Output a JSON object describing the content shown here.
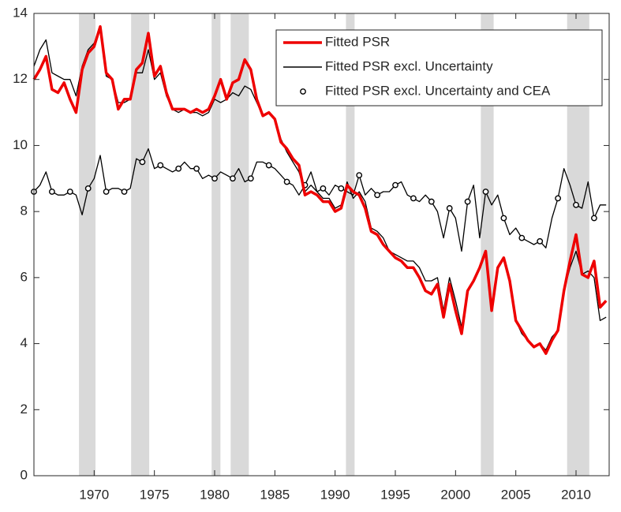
{
  "chart_data": {
    "type": "line",
    "x": [
      1965,
      1965.5,
      1966,
      1966.5,
      1967,
      1967.5,
      1968,
      1968.5,
      1969,
      1969.5,
      1970,
      1970.5,
      1971,
      1971.5,
      1972,
      1972.5,
      1973,
      1973.5,
      1974,
      1974.5,
      1975,
      1975.5,
      1976,
      1976.5,
      1977,
      1977.5,
      1978,
      1978.5,
      1979,
      1979.5,
      1980,
      1980.5,
      1981,
      1981.5,
      1982,
      1982.5,
      1983,
      1983.5,
      1984,
      1984.5,
      1985,
      1985.5,
      1986,
      1986.5,
      1987,
      1987.5,
      1988,
      1988.5,
      1989,
      1989.5,
      1990,
      1990.5,
      1991,
      1991.5,
      1992,
      1992.5,
      1993,
      1993.5,
      1994,
      1994.5,
      1995,
      1995.5,
      1996,
      1996.5,
      1997,
      1997.5,
      1998,
      1998.5,
      1999,
      1999.5,
      2000,
      2000.5,
      2001,
      2001.5,
      2002,
      2002.5,
      2003,
      2003.5,
      2004,
      2004.5,
      2005,
      2005.5,
      2006,
      2006.5,
      2007,
      2007.5,
      2008,
      2008.5,
      2009,
      2009.5,
      2010,
      2010.5,
      2011,
      2011.5,
      2012,
      2012.5
    ],
    "series": [
      {
        "name": "Fitted PSR",
        "color": "#ee0000",
        "values": [
          12.0,
          12.3,
          12.7,
          11.7,
          11.6,
          11.9,
          11.4,
          11.0,
          12.3,
          12.8,
          13.0,
          13.6,
          12.2,
          12.0,
          11.1,
          11.4,
          11.4,
          12.3,
          12.5,
          13.4,
          12.1,
          12.4,
          11.6,
          11.1,
          11.1,
          11.1,
          11.0,
          11.1,
          11.0,
          11.1,
          11.5,
          12.0,
          11.4,
          11.9,
          12.0,
          12.6,
          12.3,
          11.4,
          10.9,
          11.0,
          10.8,
          10.1,
          9.9,
          9.6,
          9.4,
          8.5,
          8.6,
          8.5,
          8.3,
          8.3,
          8.0,
          8.1,
          8.8,
          8.6,
          8.5,
          8.1,
          7.4,
          7.3,
          7.0,
          6.8,
          6.6,
          6.5,
          6.3,
          6.3,
          6.0,
          5.6,
          5.5,
          5.8,
          4.8,
          5.8,
          5.0,
          4.3,
          5.6,
          5.9,
          6.3,
          6.8,
          5.0,
          6.3,
          6.6,
          5.9,
          4.7,
          4.4,
          4.1,
          3.9,
          4.0,
          3.7,
          4.1,
          4.4,
          5.6,
          6.5,
          7.3,
          6.1,
          6.0,
          6.5,
          5.1,
          5.3
        ]
      },
      {
        "name": "Fitted PSR excl. Uncertainty",
        "color": "#000000",
        "values": [
          12.4,
          12.9,
          13.2,
          12.2,
          12.1,
          12.0,
          12.0,
          11.5,
          12.4,
          12.9,
          13.1,
          13.6,
          12.1,
          12.0,
          11.3,
          11.3,
          11.4,
          12.2,
          12.2,
          12.9,
          12.0,
          12.2,
          11.5,
          11.1,
          11.0,
          11.1,
          11.0,
          11.0,
          10.9,
          11.0,
          11.4,
          11.3,
          11.4,
          11.6,
          11.5,
          11.8,
          11.7,
          11.3,
          10.9,
          11.0,
          10.8,
          10.2,
          9.8,
          9.5,
          9.2,
          8.6,
          8.8,
          8.6,
          8.4,
          8.4,
          8.1,
          8.2,
          8.9,
          8.4,
          8.6,
          8.3,
          7.5,
          7.4,
          7.2,
          6.8,
          6.7,
          6.6,
          6.5,
          6.5,
          6.3,
          5.9,
          5.9,
          6.0,
          5.0,
          6.0,
          5.3,
          4.5,
          5.6,
          5.9,
          6.3,
          6.8,
          5.0,
          6.3,
          6.6,
          5.9,
          4.7,
          4.3,
          4.1,
          3.9,
          4.0,
          3.8,
          4.2,
          4.4,
          5.6,
          6.3,
          6.8,
          6.1,
          6.2,
          6.0,
          4.7,
          4.8
        ]
      },
      {
        "name": "Fitted PSR excl. Uncertainty and CEA",
        "color": "#000000",
        "marker": "circle",
        "values": [
          8.6,
          8.8,
          9.2,
          8.6,
          8.5,
          8.5,
          8.6,
          8.5,
          7.9,
          8.7,
          9.0,
          9.7,
          8.6,
          8.7,
          8.7,
          8.6,
          8.7,
          9.6,
          9.5,
          9.9,
          9.3,
          9.4,
          9.3,
          9.2,
          9.3,
          9.5,
          9.3,
          9.3,
          9.0,
          9.1,
          9.0,
          9.2,
          9.1,
          9.0,
          9.3,
          8.9,
          9.0,
          9.5,
          9.5,
          9.4,
          9.3,
          9.1,
          8.9,
          8.8,
          8.5,
          8.8,
          9.2,
          8.6,
          8.7,
          8.5,
          8.8,
          8.7,
          8.6,
          8.5,
          9.1,
          8.5,
          8.7,
          8.5,
          8.6,
          8.6,
          8.8,
          8.9,
          8.5,
          8.4,
          8.3,
          8.5,
          8.3,
          8.0,
          7.2,
          8.1,
          7.8,
          6.8,
          8.3,
          8.8,
          7.2,
          8.6,
          8.2,
          8.5,
          7.8,
          7.3,
          7.5,
          7.2,
          7.1,
          7.0,
          7.1,
          6.9,
          7.8,
          8.4,
          9.3,
          8.8,
          8.2,
          8.1,
          8.9,
          7.8,
          8.2,
          8.2
        ]
      }
    ],
    "recessions": [
      [
        1968.74,
        1970.11
      ],
      [
        1973.07,
        1974.57
      ],
      [
        1979.75,
        1980.48
      ],
      [
        1981.33,
        1982.84
      ],
      [
        1990.9,
        1991.62
      ],
      [
        2002.1,
        2003.16
      ],
      [
        2009.26,
        2011.1
      ]
    ],
    "xlim": [
      1965,
      2012.75
    ],
    "xticks": [
      1970,
      1975,
      1980,
      1985,
      1990,
      1995,
      2000,
      2005,
      2010
    ],
    "ylim": [
      0,
      14
    ],
    "yticks": [
      0,
      2,
      4,
      6,
      8,
      10,
      12,
      14
    ],
    "legend": "upper right"
  }
}
